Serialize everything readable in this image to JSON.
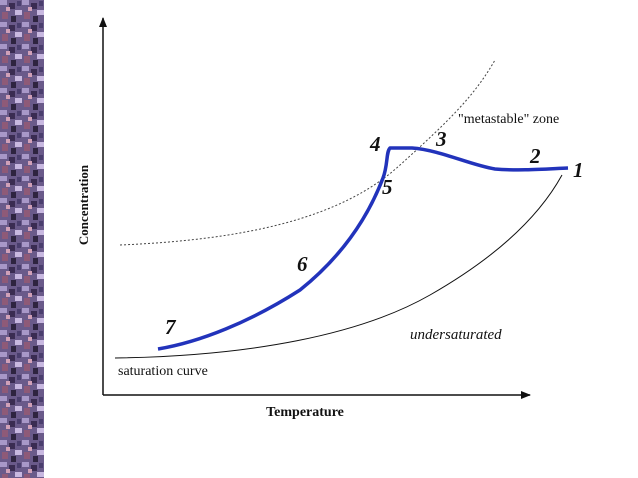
{
  "axes": {
    "y_label": "Concentration",
    "x_label": "Temperature"
  },
  "curves": {
    "saturation": "saturation curve",
    "metastable": "\"metastable\" zone"
  },
  "regions": {
    "undersaturated": "undersaturated"
  },
  "points": [
    "1",
    "2",
    "3",
    "4",
    "5",
    "6",
    "7"
  ]
}
